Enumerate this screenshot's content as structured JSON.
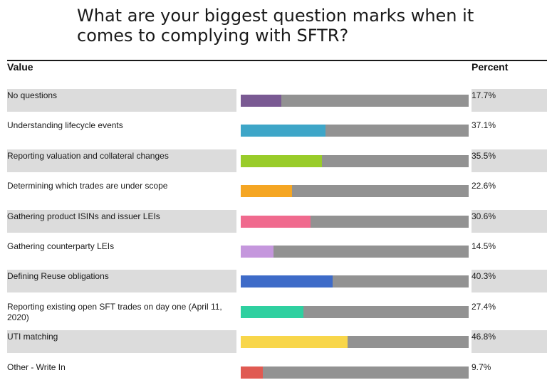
{
  "title": "What are your biggest question marks when it comes to complying with SFTR?",
  "headers": {
    "value": "Value",
    "percent": "Percent"
  },
  "chart_data": {
    "type": "bar",
    "orientation": "horizontal",
    "title": "What are your biggest question marks when it comes to complying with SFTR?",
    "xlim": [
      0,
      100
    ],
    "categories": [
      "No questions",
      "Understanding lifecycle events",
      "Reporting valuation and collateral changes",
      "Determining which trades are under scope",
      "Gathering product ISINs and issuer LEIs",
      "Gathering counterparty LEIs",
      "Defining Reuse obligations",
      "Reporting existing open SFT trades on day one (April 11, 2020)",
      "UTI matching",
      "Other - Write In"
    ],
    "values": [
      17.7,
      37.1,
      35.5,
      22.6,
      30.6,
      14.5,
      40.3,
      27.4,
      46.8,
      9.7
    ],
    "value_labels": [
      "17.7%",
      "37.1%",
      "35.5%",
      "22.6%",
      "30.6%",
      "14.5%",
      "40.3%",
      "27.4%",
      "46.8%",
      "9.7%"
    ],
    "colors": [
      "#7a5a93",
      "#3ea6c8",
      "#99cc2a",
      "#f5a623",
      "#f06a8e",
      "#c597dd",
      "#3e6bc8",
      "#2fd0a0",
      "#f8d64a",
      "#e05a52"
    ],
    "track_color": "#929292",
    "shading_color": "#dcdcdc"
  }
}
